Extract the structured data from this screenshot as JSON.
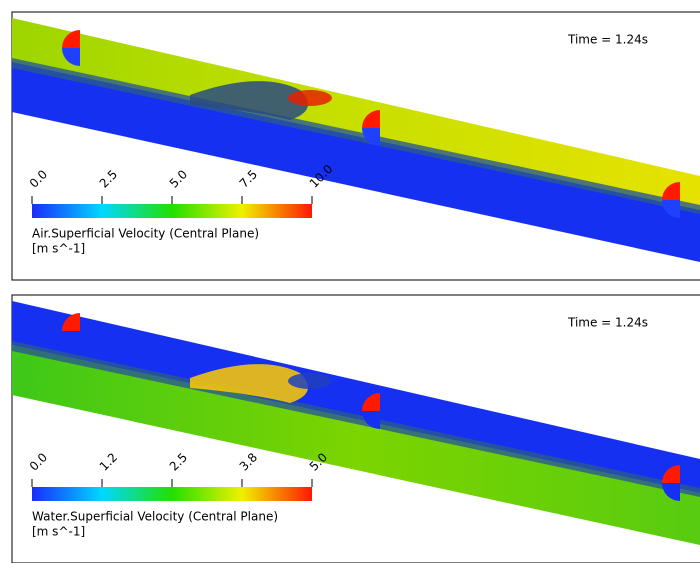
{
  "panels": [
    {
      "time_label": "Time = 1.24s",
      "colorbar": {
        "ticks": [
          "0.0",
          "2.5",
          "5.0",
          "7.5",
          "10.0"
        ],
        "title": "Air.Superficial Velocity (Central Plane)",
        "units": "[m s^-1]"
      }
    },
    {
      "time_label": "Time = 1.24s",
      "colorbar": {
        "ticks": [
          "0.0",
          "1.2",
          "2.5",
          "3.8",
          "5.0"
        ],
        "title": "Water.Superficial Velocity (Central Plane)",
        "units": "[m s^-1]"
      }
    }
  ]
}
